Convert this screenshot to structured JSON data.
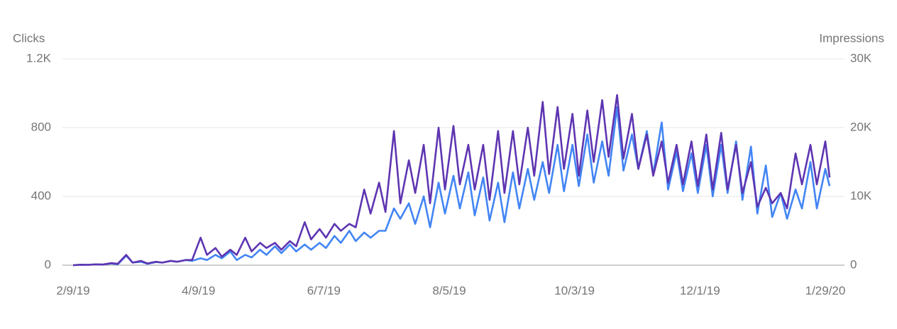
{
  "chart_data": {
    "type": "line",
    "x": [
      "2/9/19",
      "2/13/19",
      "2/16/19",
      "2/20/19",
      "2/23/19",
      "2/27/19",
      "3/2/19",
      "3/6/19",
      "3/9/19",
      "3/13/19",
      "3/16/19",
      "3/20/19",
      "3/23/19",
      "3/27/19",
      "3/30/19",
      "4/3/19",
      "4/6/19",
      "4/10/19",
      "4/13/19",
      "4/17/19",
      "4/20/19",
      "4/24/19",
      "4/27/19",
      "5/1/19",
      "5/4/19",
      "5/8/19",
      "5/11/19",
      "5/15/19",
      "5/18/19",
      "5/22/19",
      "5/25/19",
      "5/29/19",
      "6/1/19",
      "6/5/19",
      "6/8/19",
      "6/12/19",
      "6/15/19",
      "6/19/19",
      "6/22/19",
      "6/26/19",
      "6/29/19",
      "7/3/19",
      "7/6/19",
      "7/10/19",
      "7/13/19",
      "7/17/19",
      "7/20/19",
      "7/24/19",
      "7/27/19",
      "7/31/19",
      "8/3/19",
      "8/7/19",
      "8/10/19",
      "8/14/19",
      "8/17/19",
      "8/21/19",
      "8/24/19",
      "8/28/19",
      "8/31/19",
      "9/4/19",
      "9/7/19",
      "9/11/19",
      "9/14/19",
      "9/18/19",
      "9/21/19",
      "9/25/19",
      "9/28/19",
      "10/2/19",
      "10/5/19",
      "10/9/19",
      "10/12/19",
      "10/16/19",
      "10/19/19",
      "10/23/19",
      "10/26/19",
      "10/30/19",
      "11/2/19",
      "11/6/19",
      "11/9/19",
      "11/13/19",
      "11/16/19",
      "11/20/19",
      "11/23/19",
      "11/27/19",
      "11/30/19",
      "12/4/19",
      "12/7/19",
      "12/11/19",
      "12/14/19",
      "12/18/19",
      "12/21/19",
      "12/25/19",
      "12/28/19",
      "1/1/20",
      "1/4/20",
      "1/8/20",
      "1/11/20",
      "1/15/20",
      "1/18/20",
      "1/22/20",
      "1/25/20",
      "1/29/20",
      "1/31/20"
    ],
    "xlim": [
      "2/9/19",
      "1/29/20"
    ],
    "xticks": [
      "2/9/19",
      "4/9/19",
      "6/7/19",
      "8/5/19",
      "10/3/19",
      "12/1/19",
      "1/29/20"
    ],
    "ylim": [
      0,
      1200
    ],
    "yticks": [
      0,
      400,
      800,
      {
        "value": 1200,
        "label": "1.2K"
      }
    ],
    "y2lim": [
      0,
      30000
    ],
    "y2ticks": [
      0,
      {
        "value": 10000,
        "label": "10K"
      },
      {
        "value": 20000,
        "label": "20K"
      },
      {
        "value": 30000,
        "label": "30K"
      }
    ],
    "grid": true,
    "series": [
      {
        "name": "Clicks",
        "color": "#4285f4",
        "values": [
          0,
          3,
          2,
          5,
          3,
          10,
          5,
          55,
          15,
          20,
          8,
          18,
          15,
          25,
          20,
          30,
          25,
          40,
          30,
          60,
          40,
          80,
          30,
          60,
          45,
          90,
          60,
          110,
          70,
          120,
          80,
          120,
          90,
          130,
          100,
          170,
          130,
          200,
          140,
          190,
          160,
          200,
          200,
          330,
          270,
          360,
          240,
          400,
          220,
          480,
          300,
          520,
          330,
          540,
          290,
          510,
          260,
          480,
          250,
          540,
          330,
          560,
          380,
          600,
          420,
          700,
          430,
          700,
          460,
          760,
          480,
          720,
          520,
          920,
          550,
          760,
          560,
          780,
          530,
          830,
          440,
          660,
          430,
          650,
          420,
          700,
          400,
          700,
          420,
          720,
          380,
          690,
          300,
          580,
          280,
          420,
          270,
          440,
          330,
          600,
          330,
          560,
          460
        ]
      },
      {
        "name": "Impressions",
        "color": "#5e35b1",
        "axis": "y2",
        "values": [
          0,
          75,
          50,
          125,
          100,
          300,
          200,
          1500,
          375,
          625,
          250,
          500,
          375,
          625,
          500,
          750,
          750,
          4000,
          1500,
          2500,
          1250,
          2250,
          1500,
          4000,
          2000,
          3250,
          2500,
          3250,
          2250,
          3500,
          2750,
          6250,
          3750,
          5250,
          4000,
          6000,
          5000,
          6000,
          5500,
          11000,
          7500,
          12000,
          7750,
          19500,
          9000,
          15250,
          10500,
          17500,
          9000,
          20000,
          11000,
          20250,
          11750,
          17500,
          11000,
          17500,
          9500,
          19500,
          10500,
          19500,
          11750,
          20000,
          13000,
          23750,
          13250,
          23000,
          14000,
          22000,
          13000,
          22500,
          15000,
          24000,
          15750,
          24750,
          15500,
          22000,
          14000,
          19000,
          13000,
          18000,
          12000,
          17500,
          11750,
          18000,
          11500,
          19000,
          11000,
          19250,
          11000,
          17500,
          10500,
          15000,
          8500,
          11250,
          9000,
          10500,
          8250,
          16250,
          11750,
          17500,
          11750,
          18000,
          12750
        ]
      }
    ]
  }
}
